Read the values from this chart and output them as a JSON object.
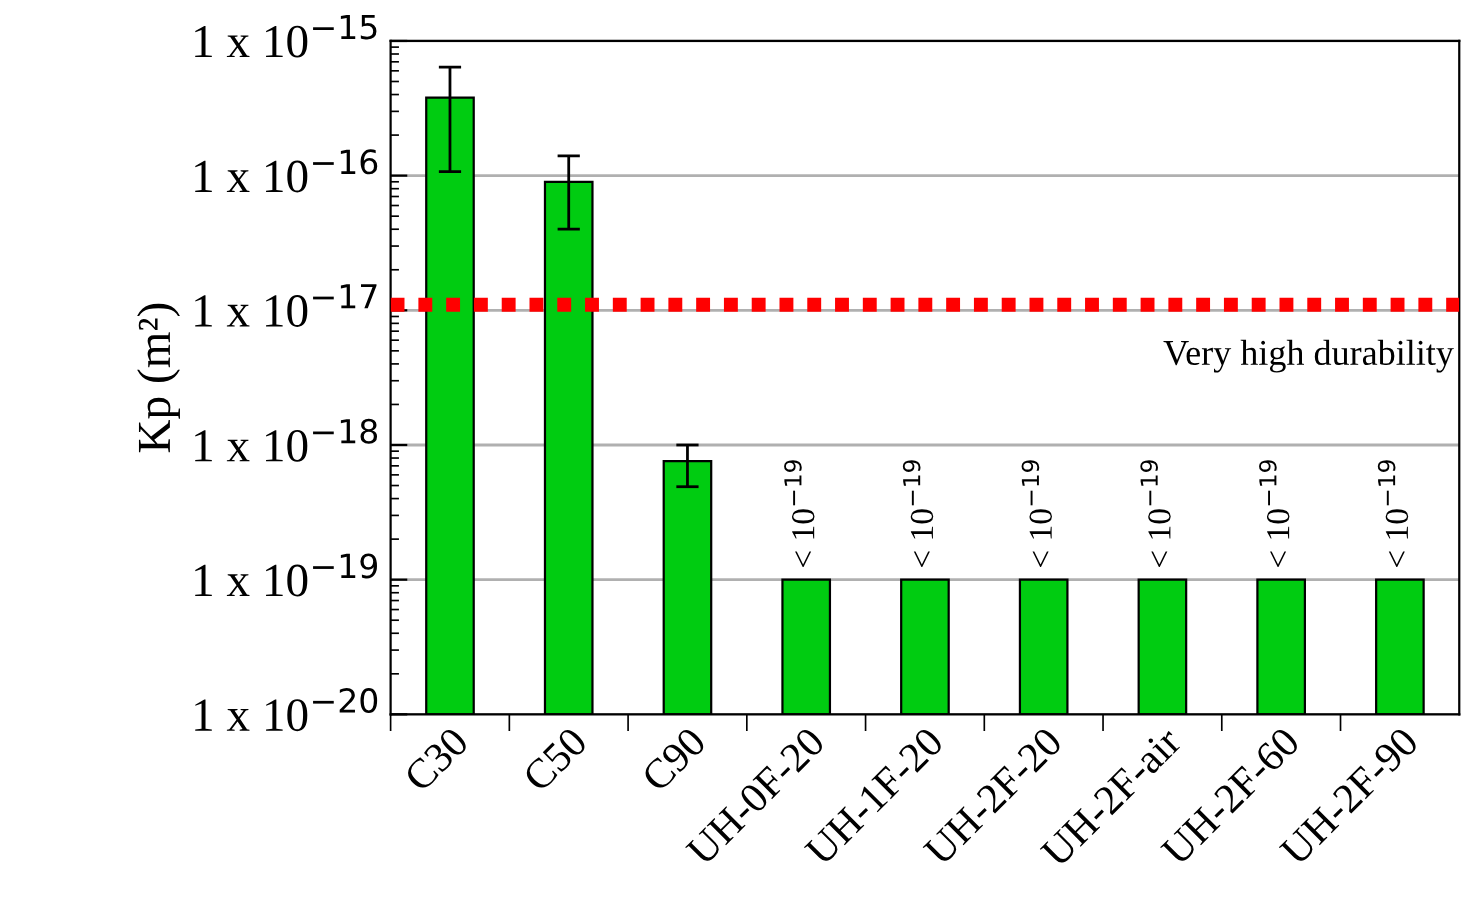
{
  "chart_data": {
    "type": "bar",
    "ylabel": "Kp (m²)",
    "categories": [
      "C30",
      "C50",
      "C90",
      "UH-0F-20",
      "UH-1F-20",
      "UH-2F-20",
      "UH-2F-air",
      "UH-2F-60",
      "UH-2F-90"
    ],
    "values": [
      3.8e-16,
      9e-17,
      7.6e-19,
      1e-19,
      1e-19,
      1e-19,
      1e-19,
      1e-19,
      1e-19
    ],
    "errors": [
      [
        1.07e-16,
        6.4e-16
      ],
      [
        4e-17,
        1.4e-16
      ],
      [
        4.9e-19,
        1e-18
      ],
      null,
      null,
      null,
      null,
      null,
      null
    ],
    "value_labels": [
      null,
      null,
      null,
      "< 10$^{−19}$",
      "< 10$^{−19}$",
      "< 10$^{−19}$",
      "< 10$^{−19}$",
      "< 10$^{−19}$",
      "< 10$^{−19}$"
    ],
    "color": "#00cc11",
    "log": true,
    "ylim": [
      1e-20,
      1e-15
    ],
    "yticks": [
      {
        "value": 1e-20,
        "label": "1 x 10$^{−20}$"
      },
      {
        "value": 1e-19,
        "label": "1 x 10$^{−19}$"
      },
      {
        "value": 1e-18,
        "label": "1 x 10$^{−18}$"
      },
      {
        "value": 1e-17,
        "label": "1 x 10$^{−17}$"
      },
      {
        "value": 1e-16,
        "label": "1 x 10$^{−16}$"
      },
      {
        "value": 1e-15,
        "label": "1 x 10$^{−15}$"
      }
    ],
    "grid": "y",
    "ref_lines": [
      {
        "axis": "y",
        "value": 1.1e-17,
        "label": "Very high durability",
        "color": "#ff0000",
        "line_style": "dotted"
      }
    ]
  }
}
